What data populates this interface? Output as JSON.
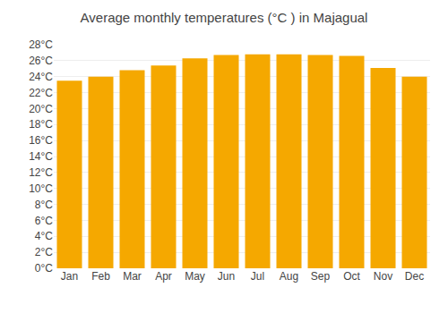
{
  "chart_data": {
    "type": "bar",
    "title": "Average monthly temperatures (°C ) in Majagual",
    "categories": [
      "Jan",
      "Feb",
      "Mar",
      "Apr",
      "May",
      "Jun",
      "Jul",
      "Aug",
      "Sep",
      "Oct",
      "Nov",
      "Dec"
    ],
    "values": [
      23.5,
      24.0,
      24.8,
      25.4,
      26.3,
      26.7,
      26.8,
      26.8,
      26.7,
      26.6,
      25.1,
      24.0
    ],
    "color": "#F5A800",
    "ylim": [
      0,
      28
    ],
    "yticks": [
      {
        "value": 0,
        "label": "0°C"
      },
      {
        "value": 2,
        "label": "2°C"
      },
      {
        "value": 4,
        "label": "4°C"
      },
      {
        "value": 6,
        "label": "6°C"
      },
      {
        "value": 8,
        "label": "8°C"
      },
      {
        "value": 10,
        "label": "10°C"
      },
      {
        "value": 12,
        "label": "12°C"
      },
      {
        "value": 14,
        "label": "14°C"
      },
      {
        "value": 16,
        "label": "16°C"
      },
      {
        "value": 18,
        "label": "18°C"
      },
      {
        "value": 20,
        "label": "20°C"
      },
      {
        "value": 22,
        "label": "22°C"
      },
      {
        "value": 24,
        "label": "24°C"
      },
      {
        "value": 26,
        "label": "26°C"
      },
      {
        "value": 28,
        "label": "28°C"
      }
    ],
    "grid": true
  }
}
